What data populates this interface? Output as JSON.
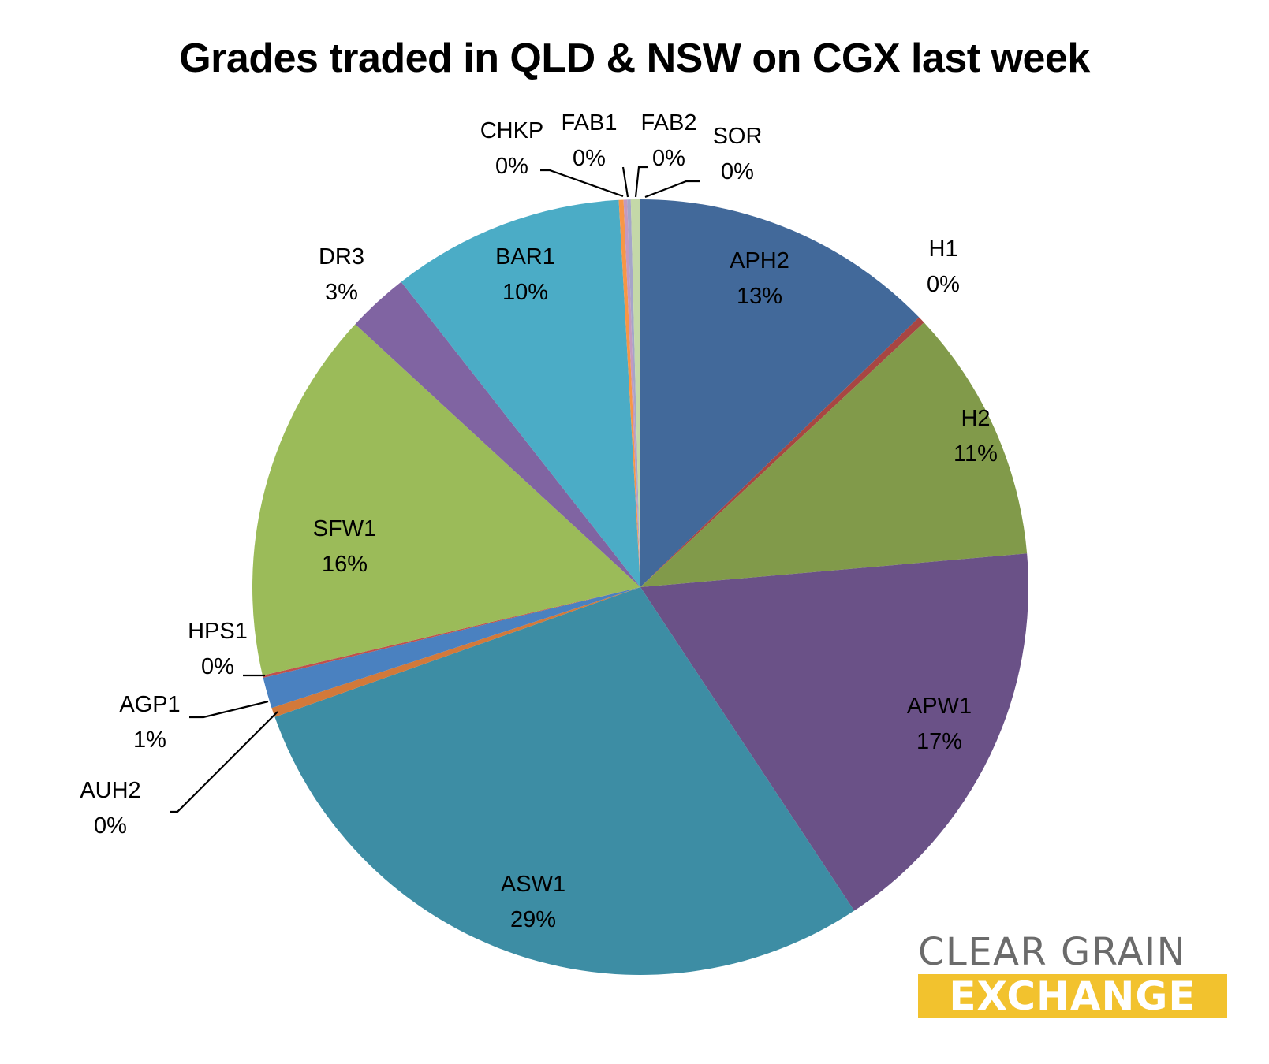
{
  "chart_data": {
    "type": "pie",
    "title": "Grades traded in QLD & NSW on CGX last week",
    "start_angle": "12 o'clock, clockwise",
    "slices": [
      {
        "label": "APH2",
        "display": "13%",
        "value": 12.9,
        "color": "#42699a"
      },
      {
        "label": "H1",
        "display": "0%",
        "value": 0.3,
        "color": "#a84642"
      },
      {
        "label": "H2",
        "display": "11%",
        "value": 10.7,
        "color": "#819a4a"
      },
      {
        "label": "APW1",
        "display": "17%",
        "value": 17.3,
        "color": "#6a5187"
      },
      {
        "label": "ASW1",
        "display": "29%",
        "value": 29.2,
        "color": "#3d8da4"
      },
      {
        "label": "AUH2",
        "display": "0%",
        "value": 0.4,
        "color": "#d2793a"
      },
      {
        "label": "AGP1",
        "display": "1%",
        "value": 1.3,
        "color": "#4a81c0"
      },
      {
        "label": "HPS1",
        "display": "0%",
        "value": 0.1,
        "color": "#c0504d"
      },
      {
        "label": "SFW1",
        "display": "16%",
        "value": 15.7,
        "color": "#9bbb59"
      },
      {
        "label": "DR3",
        "display": "3%",
        "value": 2.6,
        "color": "#8064a2"
      },
      {
        "label": "BAR1",
        "display": "10%",
        "value": 9.8,
        "color": "#4bacc6"
      },
      {
        "label": "CHKP",
        "display": "0%",
        "value": 0.2,
        "color": "#f79646"
      },
      {
        "label": "FAB1",
        "display": "0%",
        "value": 0.15,
        "color": "#c39ac0"
      },
      {
        "label": "FAB2",
        "display": "0%",
        "value": 0.15,
        "color": "#a5a5c9"
      },
      {
        "label": "SOR",
        "display": "0%",
        "value": 0.4,
        "color": "#c4d8a8"
      }
    ]
  },
  "logo": {
    "line1": "CLEAR GRAIN",
    "line2": "EXCHANGE",
    "color_text": "#6b6b6b",
    "color_band": "#f2c22e"
  }
}
